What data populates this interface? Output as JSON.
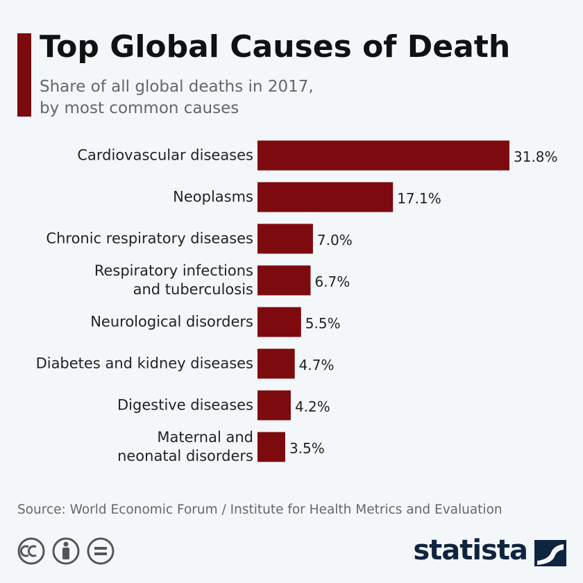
{
  "chart_data": {
    "type": "hbar",
    "title": "Top Global Causes of Death",
    "subtitle": "Share of all global deaths in 2017,\nby most common causes",
    "categories": [
      "Cardiovascular diseases",
      "Neoplasms",
      "Chronic respiratory diseases",
      "Respiratory infections\nand tuberculosis",
      "Neurological disorders",
      "Diabetes and kidney diseases",
      "Digestive diseases",
      "Maternal and\nneonatal disorders"
    ],
    "values": [
      31.8,
      17.1,
      7.0,
      6.7,
      5.5,
      4.7,
      4.2,
      3.5
    ],
    "value_labels": [
      "31.8%",
      "17.1%",
      "7.0%",
      "6.7%",
      "5.5%",
      "4.7%",
      "4.2%",
      "3.5%"
    ],
    "color": "#7d0a0f",
    "source": "Source: World Economic Forum / Institute for Health Metrics and Evaluation"
  },
  "brand": "statista"
}
